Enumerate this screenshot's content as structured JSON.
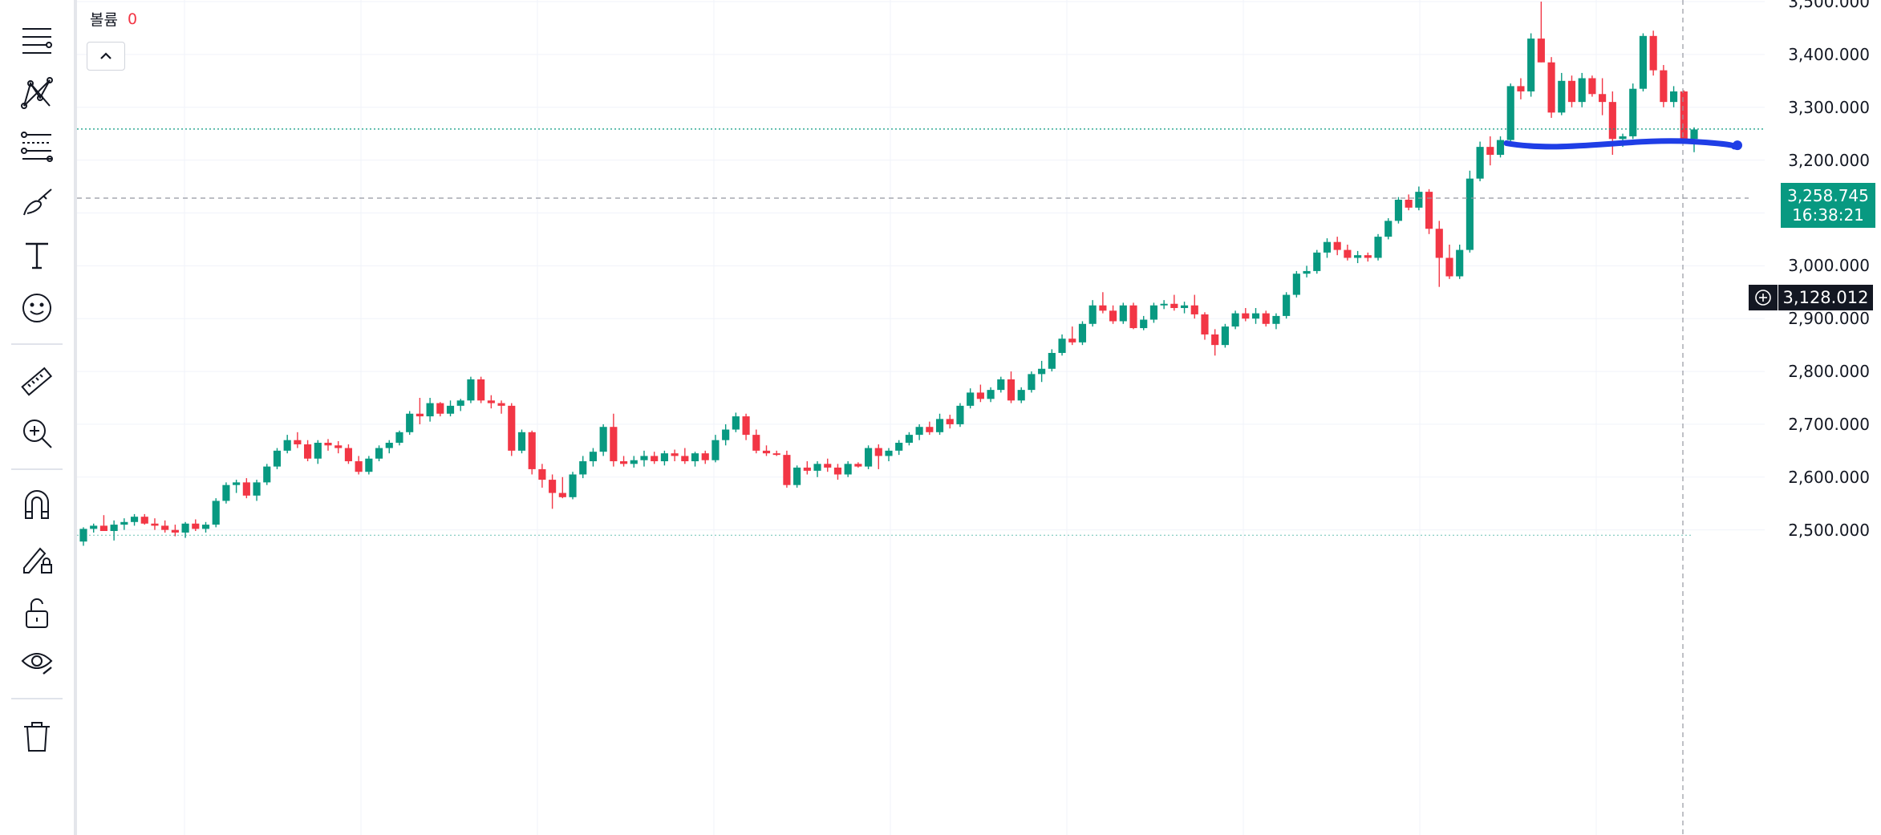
{
  "legend": {
    "label": "볼륨",
    "value": "0"
  },
  "toolbar": {
    "tools": [
      {
        "name": "lines-tool-icon"
      },
      {
        "name": "pattern-tool-icon"
      },
      {
        "name": "fib-tool-icon"
      },
      {
        "name": "brush-tool-icon"
      },
      {
        "name": "text-tool-icon"
      },
      {
        "name": "emoji-tool-icon"
      },
      {
        "name": "ruler-icon"
      },
      {
        "name": "zoom-in-icon"
      },
      {
        "name": "magnet-icon"
      },
      {
        "name": "lock-drawing-icon"
      },
      {
        "name": "unlock-icon"
      },
      {
        "name": "eye-icon"
      },
      {
        "name": "trash-icon"
      }
    ]
  },
  "price_axis": {
    "ticks": [
      "3,500.000",
      "3,400.000",
      "3,300.000",
      "3,200.000",
      "3,100.000",
      "3,000.000",
      "2,900.000",
      "2,800.000",
      "2,700.000",
      "2,600.000",
      "2,500.000"
    ]
  },
  "current_price": {
    "price": "3,258.745",
    "countdown": "16:38:21",
    "color": "#089981"
  },
  "crosshair": {
    "price": "3,128.012"
  },
  "colors": {
    "up": "#089981",
    "down": "#f23645",
    "drawn_line": "#1f3ee6"
  },
  "chart_data": {
    "type": "candlestick",
    "y_ticks": [
      3500,
      3400,
      3300,
      3200,
      3100,
      3000,
      2900,
      2800,
      2700,
      2600,
      2500
    ],
    "ohlc": [
      [
        2478,
        2505,
        2470,
        2502
      ],
      [
        2502,
        2512,
        2495,
        2508
      ],
      [
        2508,
        2528,
        2498,
        2498
      ],
      [
        2498,
        2518,
        2480,
        2510
      ],
      [
        2510,
        2522,
        2500,
        2515
      ],
      [
        2515,
        2530,
        2508,
        2525
      ],
      [
        2525,
        2530,
        2510,
        2512
      ],
      [
        2512,
        2522,
        2500,
        2508
      ],
      [
        2508,
        2518,
        2495,
        2500
      ],
      [
        2500,
        2510,
        2488,
        2495
      ],
      [
        2495,
        2515,
        2485,
        2512
      ],
      [
        2512,
        2520,
        2498,
        2502
      ],
      [
        2502,
        2515,
        2495,
        2510
      ],
      [
        2510,
        2560,
        2505,
        2555
      ],
      [
        2555,
        2590,
        2550,
        2585
      ],
      [
        2585,
        2595,
        2570,
        2590
      ],
      [
        2590,
        2598,
        2560,
        2565
      ],
      [
        2565,
        2595,
        2555,
        2590
      ],
      [
        2590,
        2625,
        2585,
        2620
      ],
      [
        2620,
        2655,
        2615,
        2650
      ],
      [
        2650,
        2680,
        2645,
        2670
      ],
      [
        2670,
        2685,
        2655,
        2662
      ],
      [
        2662,
        2670,
        2630,
        2635
      ],
      [
        2635,
        2670,
        2625,
        2665
      ],
      [
        2665,
        2672,
        2650,
        2660
      ],
      [
        2660,
        2668,
        2645,
        2655
      ],
      [
        2655,
        2662,
        2625,
        2630
      ],
      [
        2630,
        2640,
        2605,
        2610
      ],
      [
        2610,
        2640,
        2605,
        2635
      ],
      [
        2635,
        2660,
        2630,
        2655
      ],
      [
        2655,
        2670,
        2645,
        2665
      ],
      [
        2665,
        2688,
        2660,
        2685
      ],
      [
        2685,
        2725,
        2680,
        2720
      ],
      [
        2720,
        2750,
        2700,
        2715
      ],
      [
        2715,
        2750,
        2705,
        2740
      ],
      [
        2740,
        2742,
        2715,
        2720
      ],
      [
        2720,
        2745,
        2715,
        2735
      ],
      [
        2735,
        2748,
        2725,
        2745
      ],
      [
        2745,
        2790,
        2740,
        2785
      ],
      [
        2785,
        2790,
        2740,
        2745
      ],
      [
        2745,
        2755,
        2730,
        2740
      ],
      [
        2740,
        2745,
        2720,
        2735
      ],
      [
        2735,
        2740,
        2640,
        2650
      ],
      [
        2650,
        2690,
        2645,
        2685
      ],
      [
        2685,
        2688,
        2605,
        2615
      ],
      [
        2615,
        2625,
        2580,
        2595
      ],
      [
        2595,
        2605,
        2540,
        2570
      ],
      [
        2570,
        2600,
        2560,
        2562
      ],
      [
        2562,
        2610,
        2558,
        2605
      ],
      [
        2605,
        2640,
        2598,
        2630
      ],
      [
        2630,
        2655,
        2620,
        2648
      ],
      [
        2648,
        2700,
        2640,
        2695
      ],
      [
        2695,
        2720,
        2620,
        2630
      ],
      [
        2630,
        2640,
        2620,
        2625
      ],
      [
        2625,
        2640,
        2618,
        2632
      ],
      [
        2632,
        2650,
        2620,
        2640
      ],
      [
        2640,
        2648,
        2625,
        2630
      ],
      [
        2630,
        2650,
        2622,
        2645
      ],
      [
        2645,
        2652,
        2630,
        2640
      ],
      [
        2640,
        2655,
        2625,
        2630
      ],
      [
        2630,
        2648,
        2620,
        2645
      ],
      [
        2645,
        2650,
        2625,
        2632
      ],
      [
        2632,
        2680,
        2628,
        2670
      ],
      [
        2670,
        2700,
        2660,
        2690
      ],
      [
        2690,
        2722,
        2685,
        2715
      ],
      [
        2715,
        2720,
        2670,
        2680
      ],
      [
        2680,
        2690,
        2645,
        2650
      ],
      [
        2650,
        2660,
        2640,
        2645
      ],
      [
        2645,
        2650,
        2640,
        2642
      ],
      [
        2642,
        2650,
        2580,
        2585
      ],
      [
        2585,
        2622,
        2580,
        2618
      ],
      [
        2618,
        2630,
        2605,
        2612
      ],
      [
        2612,
        2630,
        2600,
        2625
      ],
      [
        2625,
        2635,
        2610,
        2618
      ],
      [
        2618,
        2625,
        2595,
        2605
      ],
      [
        2605,
        2630,
        2600,
        2625
      ],
      [
        2625,
        2628,
        2618,
        2620
      ],
      [
        2620,
        2660,
        2615,
        2655
      ],
      [
        2655,
        2662,
        2615,
        2640
      ],
      [
        2640,
        2655,
        2630,
        2650
      ],
      [
        2650,
        2670,
        2642,
        2665
      ],
      [
        2665,
        2685,
        2660,
        2680
      ],
      [
        2680,
        2700,
        2670,
        2695
      ],
      [
        2695,
        2705,
        2680,
        2685
      ],
      [
        2685,
        2720,
        2680,
        2710
      ],
      [
        2710,
        2718,
        2692,
        2700
      ],
      [
        2700,
        2740,
        2695,
        2735
      ],
      [
        2735,
        2768,
        2730,
        2760
      ],
      [
        2760,
        2775,
        2742,
        2748
      ],
      [
        2748,
        2770,
        2742,
        2765
      ],
      [
        2765,
        2790,
        2760,
        2785
      ],
      [
        2785,
        2800,
        2740,
        2745
      ],
      [
        2745,
        2770,
        2740,
        2765
      ],
      [
        2765,
        2800,
        2760,
        2795
      ],
      [
        2795,
        2820,
        2780,
        2805
      ],
      [
        2805,
        2842,
        2800,
        2835
      ],
      [
        2835,
        2870,
        2830,
        2862
      ],
      [
        2862,
        2885,
        2850,
        2855
      ],
      [
        2855,
        2895,
        2850,
        2890
      ],
      [
        2890,
        2935,
        2885,
        2925
      ],
      [
        2925,
        2950,
        2910,
        2915
      ],
      [
        2915,
        2925,
        2890,
        2895
      ],
      [
        2895,
        2930,
        2890,
        2925
      ],
      [
        2925,
        2930,
        2880,
        2882
      ],
      [
        2882,
        2905,
        2878,
        2898
      ],
      [
        2898,
        2930,
        2892,
        2925
      ],
      [
        2925,
        2935,
        2918,
        2928
      ],
      [
        2928,
        2945,
        2915,
        2920
      ],
      [
        2920,
        2932,
        2910,
        2925
      ],
      [
        2925,
        2945,
        2900,
        2908
      ],
      [
        2908,
        2912,
        2860,
        2870
      ],
      [
        2870,
        2880,
        2830,
        2850
      ],
      [
        2850,
        2890,
        2845,
        2885
      ],
      [
        2885,
        2915,
        2880,
        2910
      ],
      [
        2910,
        2920,
        2895,
        2900
      ],
      [
        2900,
        2920,
        2890,
        2910
      ],
      [
        2910,
        2915,
        2885,
        2890
      ],
      [
        2890,
        2910,
        2880,
        2905
      ],
      [
        2905,
        2950,
        2900,
        2945
      ],
      [
        2945,
        2990,
        2940,
        2985
      ],
      [
        2985,
        3000,
        2978,
        2990
      ],
      [
        2990,
        3030,
        2985,
        3025
      ],
      [
        3025,
        3052,
        3015,
        3045
      ],
      [
        3045,
        3055,
        3020,
        3030
      ],
      [
        3030,
        3040,
        3010,
        3015
      ],
      [
        3015,
        3028,
        3005,
        3020
      ],
      [
        3020,
        3025,
        3008,
        3015
      ],
      [
        3015,
        3060,
        3010,
        3055
      ],
      [
        3055,
        3090,
        3050,
        3085
      ],
      [
        3085,
        3130,
        3080,
        3125
      ],
      [
        3125,
        3135,
        3105,
        3110
      ],
      [
        3110,
        3150,
        3105,
        3140
      ],
      [
        3140,
        3145,
        3060,
        3070
      ],
      [
        3070,
        3085,
        2960,
        3015
      ],
      [
        3015,
        3040,
        2975,
        2980
      ],
      [
        2980,
        3040,
        2975,
        3030
      ],
      [
        3030,
        3180,
        3025,
        3165
      ],
      [
        3165,
        3235,
        3160,
        3225
      ],
      [
        3225,
        3245,
        3190,
        3210
      ],
      [
        3210,
        3245,
        3205,
        3238
      ],
      [
        3238,
        3345,
        3232,
        3340
      ],
      [
        3340,
        3355,
        3315,
        3330
      ],
      [
        3330,
        3440,
        3320,
        3430
      ],
      [
        3430,
        3500,
        3385,
        3385
      ],
      [
        3385,
        3395,
        3280,
        3290
      ],
      [
        3290,
        3365,
        3285,
        3350
      ],
      [
        3350,
        3360,
        3300,
        3310
      ],
      [
        3310,
        3365,
        3300,
        3355
      ],
      [
        3355,
        3360,
        3320,
        3325
      ],
      [
        3325,
        3355,
        3285,
        3310
      ],
      [
        3310,
        3330,
        3210,
        3240
      ],
      [
        3240,
        3250,
        3225,
        3245
      ],
      [
        3245,
        3345,
        3240,
        3335
      ],
      [
        3335,
        3440,
        3330,
        3435
      ],
      [
        3435,
        3445,
        3360,
        3370
      ],
      [
        3370,
        3380,
        3300,
        3310
      ],
      [
        3310,
        3340,
        3300,
        3330
      ],
      [
        3330,
        3332,
        3235,
        3240
      ],
      [
        3240,
        3262,
        3215,
        3258
      ]
    ]
  }
}
